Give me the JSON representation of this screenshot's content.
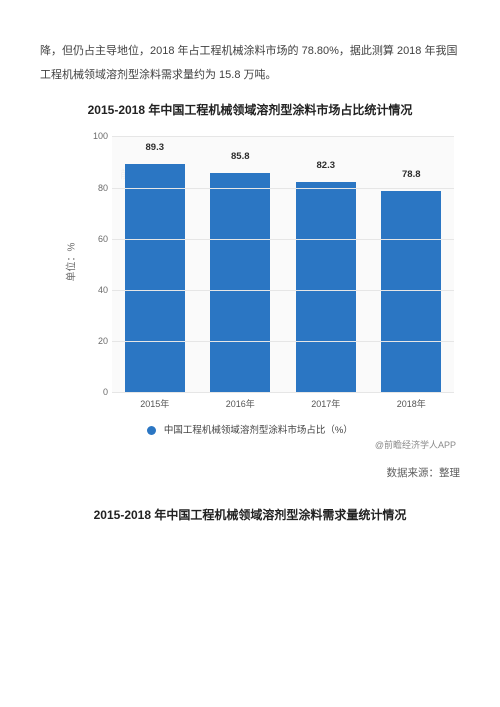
{
  "body_text": "降，但仍占主导地位，2018 年占工程机械涂料市场的 78.80%，据此测算 2018 年我国工程机械领域溶剂型涂料需求量约为 15.8 万吨。",
  "chart1": {
    "title": "2015-2018 年中国工程机械领域溶剂型涂料市场占比统计情况",
    "type": "bar",
    "categories": [
      "2015年",
      "2016年",
      "2017年",
      "2018年"
    ],
    "values": [
      89.3,
      85.8,
      82.3,
      78.8
    ],
    "bar_color": "#2b76c3",
    "ylim": [
      0,
      100
    ],
    "ytick_step": 20,
    "yticks": [
      0,
      20,
      40,
      60,
      80,
      100
    ],
    "ylabel": "单位：%",
    "legend_label": "中国工程机械领域溶剂型涂料市场占比（%）",
    "grid_color": "#e6e6e6",
    "background_color": "#fafafa",
    "label_fontsize": 9,
    "bar_width": 0.7,
    "watermark": "@前瞻经济学人APP"
  },
  "source_text": "数据来源：整理",
  "chart2_title": "2015-2018 年中国工程机械领域溶剂型涂料需求量统计情况"
}
